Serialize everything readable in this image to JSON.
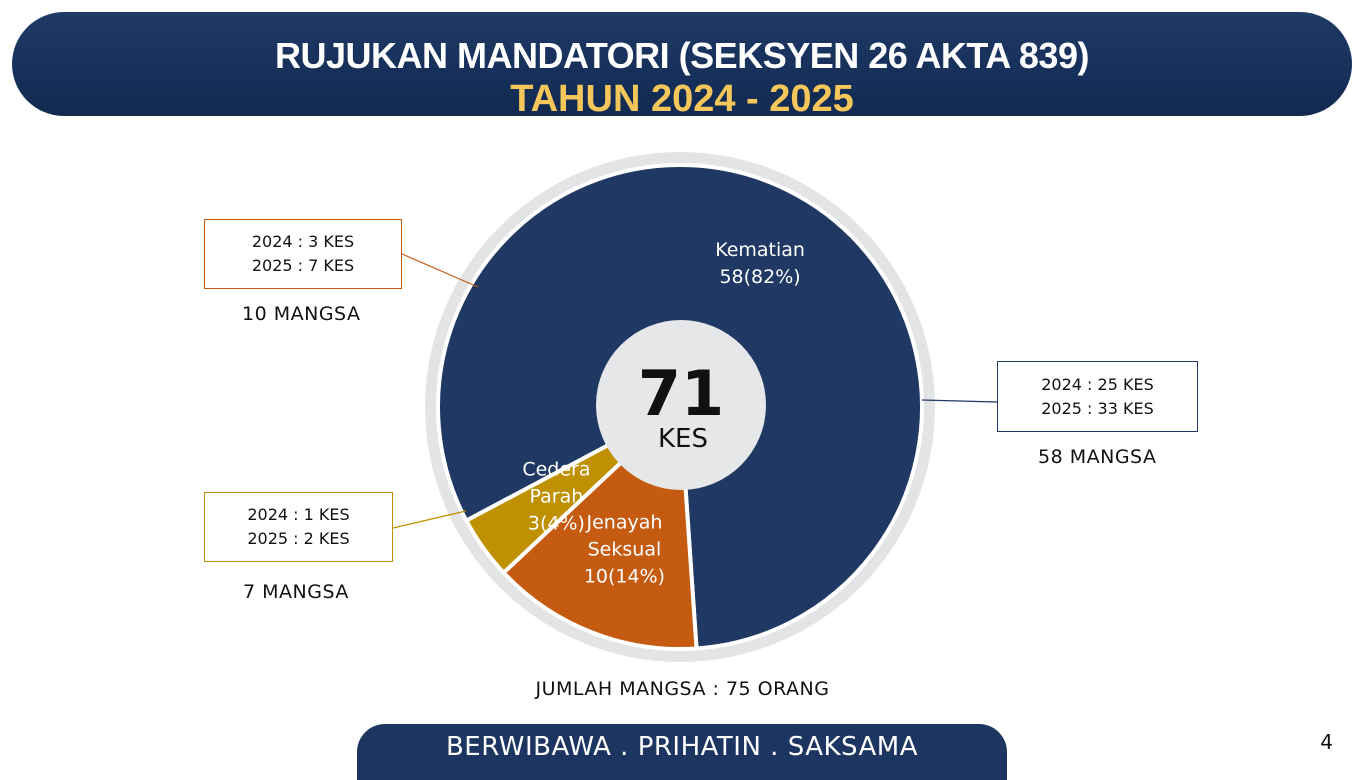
{
  "header": {
    "title_line1": "RUJUKAN MANDATORI (SEKSYEN 26 AKTA 839)",
    "title_line2": "TAHUN 2024 - 2025"
  },
  "center": {
    "total": "71",
    "unit": "KES"
  },
  "callouts": {
    "jenayah": {
      "line1": "2024 : 3 KES",
      "line2": "2025 : 7 KES",
      "victims": "10 MANGSA"
    },
    "cedera": {
      "line1": "2024 : 1 KES",
      "line2": "2025 : 2 KES",
      "victims": "7 MANGSA"
    },
    "kematian": {
      "line1": "2024 : 25 KES",
      "line2": "2025 : 33 KES",
      "victims": "58 MANGSA"
    }
  },
  "total_victims": "JUMLAH MANGSA : 75 ORANG",
  "footer": {
    "motto": "BERWIBAWA . PRIHATIN . SAKSAMA"
  },
  "page_number": "4",
  "colors": {
    "kematian": "#1f3864",
    "jenayah": "#c55a11",
    "cedera": "#bf9000",
    "ring": "#e3e4e6",
    "center_disc": "#e6e7e9",
    "title_accent": "#f5c75b"
  },
  "chart_data": {
    "type": "pie",
    "title": "",
    "series": [
      {
        "name": "",
        "values": [
          58,
          10,
          3
        ]
      }
    ],
    "categories": [
      "Kematian",
      "Jenayah Seksual",
      "Cedera Parah"
    ],
    "slices": [
      {
        "label_lines": [
          "Kematian"
        ],
        "value": 58,
        "value_text": "58(82%)",
        "color": "#1f3864"
      },
      {
        "label_lines": [
          "Jenayah",
          "Seksual"
        ],
        "value": 10,
        "value_text": "10(14%)",
        "color": "#c55a11"
      },
      {
        "label_lines": [
          "Cedera",
          "Parah"
        ],
        "value": 3,
        "value_text": "3(4%)",
        "color": "#bf9000"
      }
    ]
  }
}
